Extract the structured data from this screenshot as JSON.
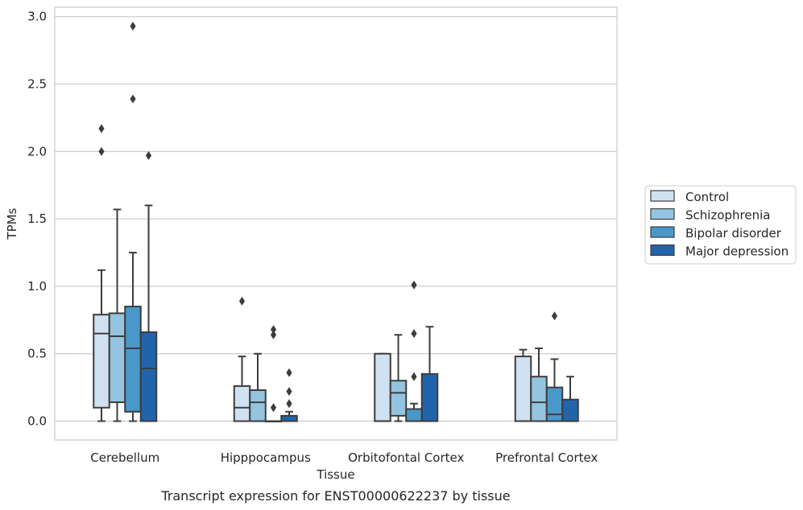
{
  "caption": "Transcript expression for ENST00000622237 by tissue",
  "chart_data": {
    "type": "box",
    "title": "",
    "xlabel": "Tissue",
    "ylabel": "TPMs",
    "ylim": [
      -0.14,
      3.07
    ],
    "yticks": [
      0.0,
      0.5,
      1.0,
      1.5,
      2.0,
      2.5,
      3.0
    ],
    "ytick_labels": [
      "0.0",
      "0.5",
      "1.0",
      "1.5",
      "2.0",
      "2.5",
      "3.0"
    ],
    "grid": "horizontal",
    "legend_position": "right",
    "categories": [
      "Cerebellum",
      "Hipppocampus",
      "Orbitofontal Cortex",
      "Prefrontal Cortex"
    ],
    "series": [
      {
        "name": "Control",
        "color": "#d0e1f2",
        "boxes": [
          {
            "whislo": 0.0,
            "q1": 0.1,
            "med": 0.65,
            "q3": 0.79,
            "whishi": 1.12,
            "fliers": [
              2.0,
              2.17
            ]
          },
          {
            "whislo": 0.0,
            "q1": 0.0,
            "med": 0.1,
            "q3": 0.26,
            "whishi": 0.48,
            "fliers": [
              0.89
            ]
          },
          {
            "whislo": 0.0,
            "q1": 0.0,
            "med": 0.0,
            "q3": 0.5,
            "whishi": 0.5,
            "fliers": []
          },
          {
            "whislo": 0.0,
            "q1": 0.0,
            "med": 0.0,
            "q3": 0.48,
            "whishi": 0.53,
            "fliers": []
          }
        ]
      },
      {
        "name": "Schizophrenia",
        "color": "#94c4df",
        "boxes": [
          {
            "whislo": 0.0,
            "q1": 0.14,
            "med": 0.63,
            "q3": 0.8,
            "whishi": 1.57,
            "fliers": []
          },
          {
            "whislo": 0.0,
            "q1": 0.0,
            "med": 0.14,
            "q3": 0.23,
            "whishi": 0.5,
            "fliers": []
          },
          {
            "whislo": 0.0,
            "q1": 0.04,
            "med": 0.21,
            "q3": 0.3,
            "whishi": 0.64,
            "fliers": []
          },
          {
            "whislo": 0.0,
            "q1": 0.0,
            "med": 0.14,
            "q3": 0.33,
            "whishi": 0.54,
            "fliers": []
          }
        ]
      },
      {
        "name": "Bipolar disorder",
        "color": "#4a98c9",
        "boxes": [
          {
            "whislo": 0.0,
            "q1": 0.07,
            "med": 0.54,
            "q3": 0.85,
            "whishi": 1.25,
            "fliers": [
              2.39,
              2.93
            ]
          },
          {
            "whislo": 0.0,
            "q1": 0.0,
            "med": 0.0,
            "q3": 0.0,
            "whishi": 0.0,
            "fliers": [
              0.1,
              0.64,
              0.68
            ]
          },
          {
            "whislo": 0.0,
            "q1": 0.0,
            "med": 0.0,
            "q3": 0.09,
            "whishi": 0.13,
            "fliers": [
              0.33,
              0.65,
              1.01
            ]
          },
          {
            "whislo": 0.0,
            "q1": 0.0,
            "med": 0.05,
            "q3": 0.25,
            "whishi": 0.46,
            "fliers": [
              0.78
            ]
          }
        ]
      },
      {
        "name": "Major depression",
        "color": "#2164ab",
        "boxes": [
          {
            "whislo": 0.0,
            "q1": 0.0,
            "med": 0.39,
            "q3": 0.66,
            "whishi": 1.6,
            "fliers": [
              1.97
            ]
          },
          {
            "whislo": 0.0,
            "q1": 0.0,
            "med": 0.0,
            "q3": 0.04,
            "whishi": 0.07,
            "fliers": [
              0.13,
              0.22,
              0.36
            ]
          },
          {
            "whislo": 0.0,
            "q1": 0.0,
            "med": 0.0,
            "q3": 0.35,
            "whishi": 0.7,
            "fliers": []
          },
          {
            "whislo": 0.0,
            "q1": 0.0,
            "med": 0.0,
            "q3": 0.16,
            "whishi": 0.33,
            "fliers": []
          }
        ]
      }
    ]
  }
}
